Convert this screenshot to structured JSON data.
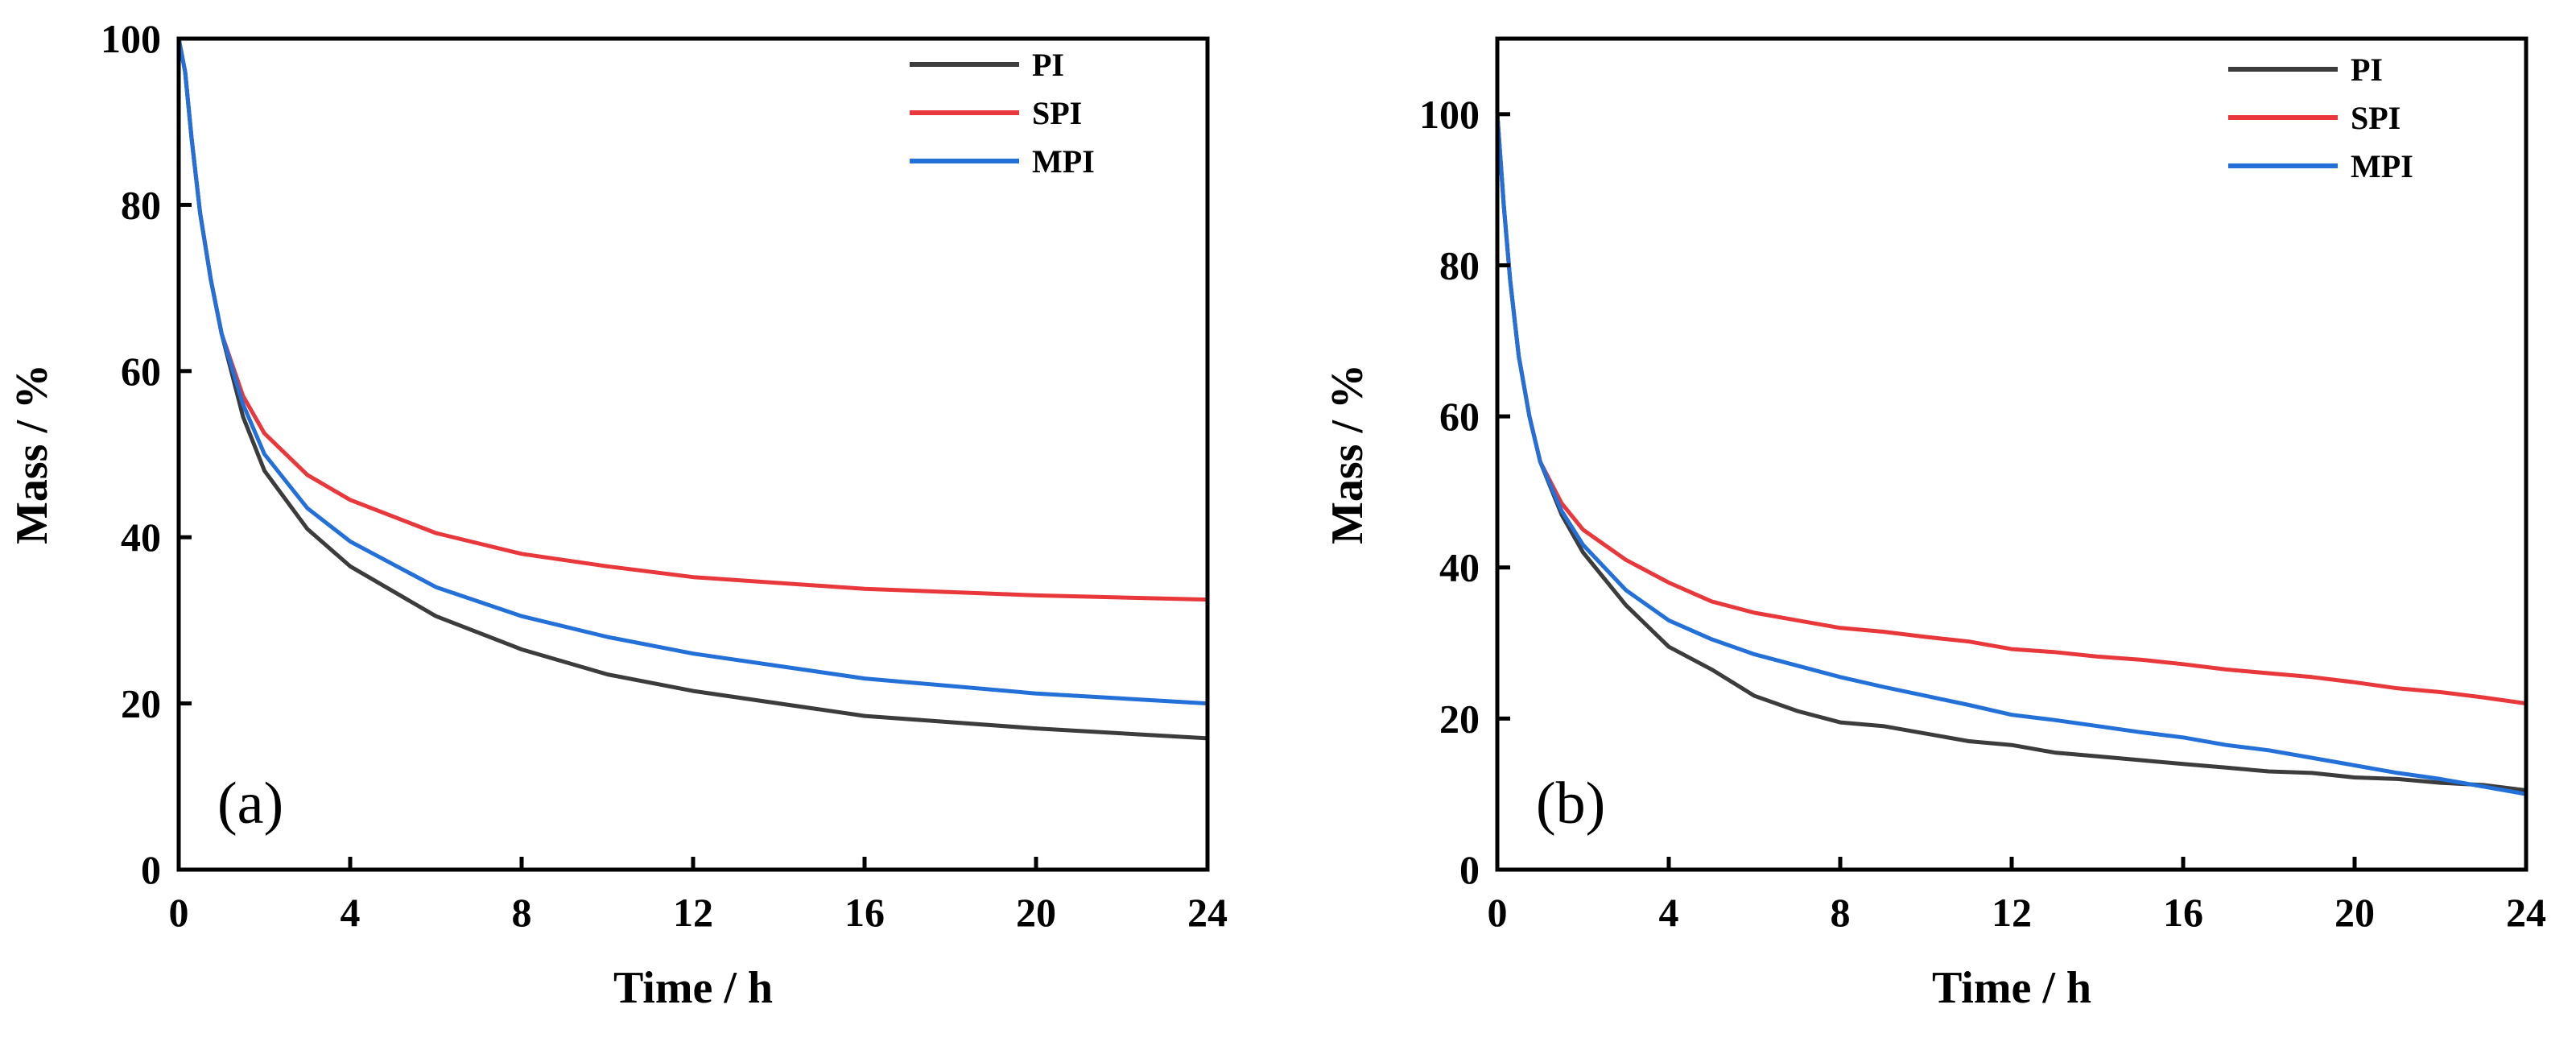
{
  "colors": {
    "PI": "#3c3c3c",
    "SPI": "#e8383b",
    "MPI": "#2470d9"
  },
  "chart_data": [
    {
      "type": "line",
      "panel_label": "(a)",
      "xlabel": "Time / h",
      "ylabel": "Mass / %",
      "xlim": [
        0,
        24
      ],
      "ylim": [
        0,
        100
      ],
      "xticks": [
        0,
        4,
        8,
        12,
        16,
        20,
        24
      ],
      "yticks": [
        0,
        20,
        40,
        60,
        80,
        100
      ],
      "legend": "top-right",
      "series": [
        {
          "name": "PI",
          "color": "#3c3c3c",
          "x": [
            0,
            0.15,
            0.3,
            0.5,
            0.75,
            1,
            1.5,
            2,
            3,
            4,
            6,
            8,
            10,
            12,
            16,
            20,
            24
          ],
          "y": [
            100,
            96,
            88,
            79,
            71,
            64.5,
            54.5,
            48,
            41,
            36.5,
            30.5,
            26.5,
            23.5,
            21.5,
            18.5,
            17,
            15.8
          ]
        },
        {
          "name": "SPI",
          "color": "#e8383b",
          "x": [
            0,
            0.15,
            0.3,
            0.5,
            0.75,
            1,
            1.5,
            2,
            3,
            4,
            6,
            8,
            10,
            12,
            16,
            20,
            24
          ],
          "y": [
            100,
            96,
            88,
            79,
            71,
            64.5,
            57,
            52.5,
            47.5,
            44.5,
            40.5,
            38,
            36.5,
            35.2,
            33.8,
            33,
            32.5
          ]
        },
        {
          "name": "MPI",
          "color": "#2470d9",
          "x": [
            0,
            0.15,
            0.3,
            0.5,
            0.75,
            1,
            1.5,
            2,
            3,
            4,
            6,
            8,
            10,
            12,
            16,
            20,
            24
          ],
          "y": [
            100,
            96,
            88,
            79,
            71,
            64.5,
            56,
            50,
            43.5,
            39.5,
            34,
            30.5,
            28,
            26,
            23,
            21.2,
            20
          ]
        }
      ]
    },
    {
      "type": "line",
      "panel_label": "(b)",
      "xlabel": "Time / h",
      "ylabel": "Mass / %",
      "xlim": [
        0,
        24
      ],
      "ylim": [
        0,
        110
      ],
      "xticks": [
        0,
        4,
        8,
        12,
        16,
        20,
        24
      ],
      "yticks": [
        0,
        20,
        40,
        60,
        80,
        100
      ],
      "legend": "top-right",
      "series": [
        {
          "name": "PI",
          "color": "#3c3c3c",
          "x": [
            0,
            0.15,
            0.3,
            0.5,
            0.75,
            1,
            1.5,
            2,
            3,
            4,
            5,
            6,
            7,
            8,
            9,
            10,
            11,
            12,
            13,
            14,
            15,
            16,
            17,
            18,
            19,
            20,
            21,
            22,
            23,
            24
          ],
          "y": [
            100,
            88,
            78,
            68,
            60,
            54,
            47,
            42,
            35,
            29.5,
            26.5,
            23,
            21,
            19.5,
            19,
            18,
            17,
            16.5,
            15.5,
            15,
            14.5,
            14,
            13.5,
            13,
            12.8,
            12.2,
            12,
            11.5,
            11.2,
            10.5
          ]
        },
        {
          "name": "SPI",
          "color": "#e8383b",
          "x": [
            0,
            0.15,
            0.3,
            0.5,
            0.75,
            1,
            1.5,
            2,
            3,
            4,
            5,
            6,
            7,
            8,
            9,
            10,
            11,
            12,
            13,
            14,
            15,
            16,
            17,
            18,
            19,
            20,
            21,
            22,
            23,
            24
          ],
          "y": [
            100,
            88,
            78,
            68,
            60,
            54,
            48.5,
            45,
            41,
            38,
            35.5,
            34,
            33,
            32,
            31.5,
            30.8,
            30.2,
            29.2,
            28.8,
            28.2,
            27.8,
            27.2,
            26.5,
            26,
            25.5,
            24.8,
            24,
            23.5,
            22.8,
            22
          ]
        },
        {
          "name": "MPI",
          "color": "#2470d9",
          "x": [
            0,
            0.15,
            0.3,
            0.5,
            0.75,
            1,
            1.5,
            2,
            3,
            4,
            5,
            6,
            7,
            8,
            9,
            10,
            11,
            12,
            13,
            14,
            15,
            16,
            17,
            18,
            19,
            20,
            21,
            22,
            23,
            24
          ],
          "y": [
            100,
            88,
            78,
            68,
            60,
            54,
            47.5,
            43,
            37,
            33,
            30.5,
            28.5,
            27,
            25.5,
            24.2,
            23,
            21.8,
            20.5,
            19.8,
            19,
            18.2,
            17.5,
            16.5,
            15.8,
            14.8,
            13.8,
            12.8,
            12,
            11,
            10
          ]
        }
      ]
    }
  ]
}
